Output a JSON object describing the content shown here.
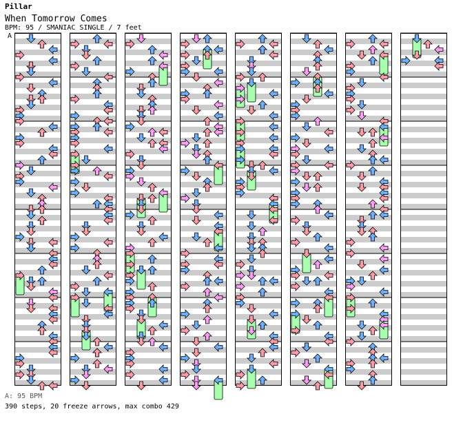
{
  "header": {
    "artist": "Pillar",
    "title": "When Tomorrow Comes",
    "meta": "BPM: 95 / SMANIAC SINGLE / 7 feet"
  },
  "bpm_marker": "A",
  "footer": {
    "bpm_legend": "A: 95 BPM",
    "stats": "390 steps, 20 freeze arrows, max combo 429"
  },
  "colors": {
    "quarter": "#6ab0ff",
    "eighth": "#ff9aa8",
    "sixteenth": "#ff9cf5",
    "freeze": "#a8ffb0",
    "stripe": "#cccccc"
  },
  "columns": 8,
  "measures_per_column": 8,
  "lanes": [
    "left",
    "down",
    "up",
    "right"
  ]
}
